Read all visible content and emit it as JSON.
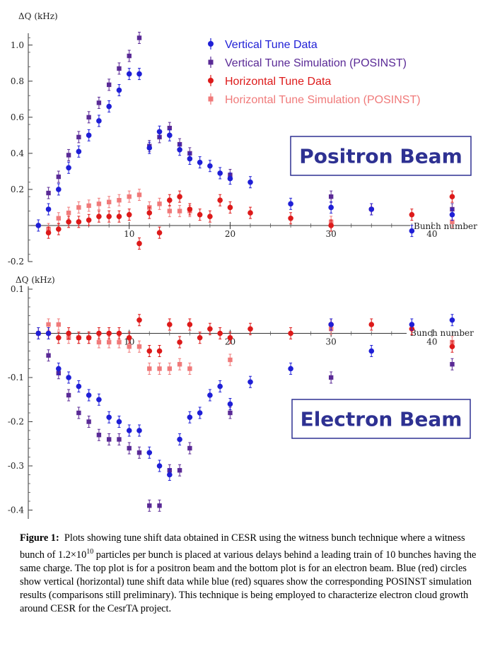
{
  "colors": {
    "vert_data": "#1f1fd6",
    "vert_sim": "#5a2a96",
    "horiz_data": "#dd1a1a",
    "horiz_sim": "#f07a7a",
    "label_text": "#2e3192",
    "label_border": "#2e3192"
  },
  "chart_data": [
    {
      "type": "scatter",
      "ylabel": "ΔQ (kHz)",
      "xlabel": "Bunch number",
      "xlim": [
        0,
        44
      ],
      "ylim": [
        -0.2,
        1.05
      ],
      "x_ticks": [
        10,
        20,
        30,
        40
      ],
      "y_ticks": [
        -0.2,
        0.2,
        0.4,
        0.6,
        0.8,
        1.0
      ],
      "y_tick_labels": [
        "-0.2",
        "0.2",
        "0.4",
        "0.6",
        "0.8",
        "1.0"
      ],
      "label": "Positron Beam",
      "legend": [
        {
          "key": "vert_data",
          "text": "Vertical Tune Data"
        },
        {
          "key": "vert_sim",
          "text": "Vertical Tune Simulation (POSINST)"
        },
        {
          "key": "horiz_data",
          "text": "Horizontal Tune Data"
        },
        {
          "key": "horiz_sim",
          "text": "Horizontal Tune Simulation (POSINST)"
        }
      ],
      "series": [
        {
          "key": "vert_data",
          "marker": "circle",
          "x": [
            1,
            2,
            3,
            4,
            5,
            6,
            7,
            8,
            9,
            10,
            11,
            12,
            13,
            14,
            15,
            16,
            17,
            18,
            19,
            20,
            22,
            26,
            30,
            34,
            38,
            42
          ],
          "y": [
            0.0,
            0.09,
            0.2,
            0.32,
            0.41,
            0.5,
            0.58,
            0.66,
            0.75,
            0.84,
            0.84,
            0.43,
            0.52,
            0.5,
            0.42,
            0.37,
            0.35,
            0.33,
            0.29,
            0.26,
            0.24,
            0.12,
            0.1,
            0.09,
            -0.03,
            0.06
          ]
        },
        {
          "key": "vert_sim",
          "marker": "square",
          "x": [
            2,
            3,
            4,
            5,
            6,
            7,
            8,
            9,
            10,
            11,
            12,
            13,
            14,
            15,
            16,
            20,
            30,
            42
          ],
          "y": [
            0.18,
            0.27,
            0.39,
            0.49,
            0.6,
            0.68,
            0.78,
            0.87,
            0.94,
            1.04,
            0.44,
            0.49,
            0.54,
            0.45,
            0.4,
            0.28,
            0.16,
            0.09
          ]
        },
        {
          "key": "horiz_data",
          "marker": "circle",
          "x": [
            2,
            3,
            4,
            5,
            6,
            7,
            8,
            9,
            10,
            11,
            12,
            13,
            14,
            15,
            16,
            17,
            18,
            19,
            20,
            22,
            26,
            30,
            34,
            38,
            42
          ],
          "y": [
            -0.04,
            -0.02,
            0.02,
            0.02,
            0.03,
            0.05,
            0.05,
            0.05,
            0.06,
            -0.1,
            0.07,
            -0.04,
            0.14,
            0.16,
            0.09,
            0.06,
            0.05,
            0.14,
            0.1,
            0.07,
            0.04,
            0.0,
            0.09,
            0.06,
            0.16
          ]
        },
        {
          "key": "horiz_sim",
          "marker": "square",
          "x": [
            2,
            3,
            4,
            5,
            6,
            7,
            8,
            9,
            10,
            11,
            12,
            13,
            14,
            15,
            16,
            30,
            42
          ],
          "y": [
            -0.02,
            0.04,
            0.07,
            0.1,
            0.11,
            0.12,
            0.13,
            0.14,
            0.16,
            0.17,
            0.1,
            0.12,
            0.08,
            0.08,
            0.08,
            0.02,
            0.02
          ]
        }
      ]
    },
    {
      "type": "scatter",
      "ylabel": "ΔQ (kHz)",
      "xlabel": "Bunch number",
      "xlim": [
        0,
        44
      ],
      "ylim": [
        -0.42,
        0.1
      ],
      "x_ticks": [
        10,
        20,
        30,
        40
      ],
      "y_ticks": [
        -0.4,
        -0.3,
        -0.2,
        -0.1,
        0.1
      ],
      "y_tick_labels": [
        "-0.4",
        "-0.3",
        "-0.2",
        "-0.1",
        "0.1"
      ],
      "label": "Electron Beam",
      "series": [
        {
          "key": "vert_data",
          "marker": "circle",
          "x": [
            1,
            2,
            3,
            4,
            5,
            6,
            7,
            8,
            9,
            10,
            11,
            12,
            13,
            14,
            15,
            16,
            17,
            18,
            19,
            20,
            22,
            26,
            30,
            34,
            38,
            42
          ],
          "y": [
            0.0,
            0.0,
            -0.08,
            -0.1,
            -0.12,
            -0.14,
            -0.15,
            -0.19,
            -0.2,
            -0.22,
            -0.22,
            -0.27,
            -0.3,
            -0.32,
            -0.24,
            -0.19,
            -0.18,
            -0.14,
            -0.12,
            -0.16,
            -0.11,
            -0.08,
            0.02,
            -0.04,
            0.02,
            0.03
          ]
        },
        {
          "key": "vert_sim",
          "marker": "square",
          "x": [
            2,
            3,
            4,
            5,
            6,
            7,
            8,
            9,
            10,
            11,
            12,
            13,
            14,
            15,
            16,
            20,
            30,
            42
          ],
          "y": [
            -0.05,
            -0.09,
            -0.14,
            -0.18,
            -0.2,
            -0.23,
            -0.24,
            -0.24,
            -0.26,
            -0.27,
            -0.39,
            -0.39,
            -0.31,
            -0.31,
            -0.26,
            -0.18,
            -0.1,
            -0.07
          ]
        },
        {
          "key": "horiz_data",
          "marker": "circle",
          "x": [
            2,
            3,
            4,
            5,
            6,
            7,
            8,
            9,
            10,
            11,
            12,
            13,
            14,
            15,
            16,
            17,
            18,
            19,
            20,
            22,
            26,
            30,
            34,
            38,
            42
          ],
          "y": [
            0.0,
            -0.01,
            0.0,
            -0.01,
            -0.01,
            0.0,
            0.0,
            0.0,
            -0.01,
            0.03,
            -0.04,
            -0.04,
            0.02,
            -0.02,
            0.02,
            -0.01,
            0.01,
            0.0,
            -0.01,
            0.01,
            0.0,
            0.02,
            0.02,
            0.01,
            -0.03
          ]
        },
        {
          "key": "horiz_sim",
          "marker": "square",
          "x": [
            1,
            2,
            3,
            4,
            5,
            6,
            7,
            8,
            9,
            10,
            11,
            12,
            13,
            14,
            15,
            16,
            20,
            30,
            42
          ],
          "y": [
            0.0,
            0.02,
            0.02,
            -0.01,
            -0.01,
            -0.01,
            -0.02,
            -0.02,
            -0.02,
            -0.03,
            -0.03,
            -0.08,
            -0.08,
            -0.08,
            -0.07,
            -0.08,
            -0.06,
            0.01,
            -0.02
          ]
        }
      ]
    }
  ],
  "caption": {
    "label": "Figure 1:",
    "text_before": "Plots showing tune shift data obtained in CESR using the witness bunch technique where a witness bunch of 1.2×10",
    "exponent": "10",
    "text_after": " particles per bunch is placed at various delays behind a leading train of 10 bunches having the same charge. The top plot is for a positron beam and the bottom plot is for an electron beam.  Blue (red) circles show vertical (horizontal) tune shift data while blue (red) squares show the corresponding POSINST simulation results (comparisons still preliminary).  This technique is being employed  to characterize electron cloud growth around CESR for the CesrTA project."
  }
}
